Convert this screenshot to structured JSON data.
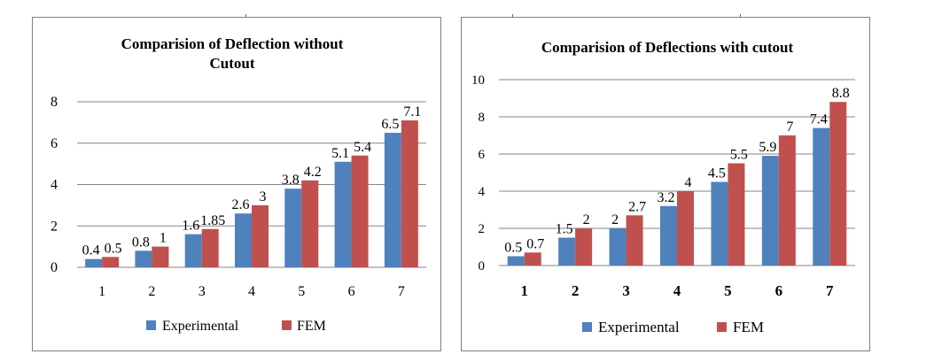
{
  "colors": {
    "experimental": "#4f81bd",
    "fem": "#c0504d",
    "gridline": "#868686",
    "border": "#7f7f7f"
  },
  "chart_data": [
    {
      "type": "bar",
      "title_lines": [
        "Comparision of Deflection without",
        "Cutout"
      ],
      "categories": [
        "1",
        "2",
        "3",
        "4",
        "5",
        "6",
        "7"
      ],
      "series": [
        {
          "name": "Experimental",
          "values": [
            0.4,
            0.8,
            1.6,
            2.6,
            3.8,
            5.1,
            6.5
          ],
          "labels": [
            "0.4",
            "0.8",
            "1.6",
            "2.6",
            "3.8",
            "5.1",
            "6.5"
          ],
          "color": "#4f81bd"
        },
        {
          "name": "FEM",
          "values": [
            0.5,
            1,
            1.85,
            3,
            4.2,
            5.4,
            7.1
          ],
          "labels": [
            "0.5",
            "1",
            "1.85",
            "3",
            "4.2",
            "5.4",
            "7.1"
          ],
          "color": "#c0504d"
        }
      ],
      "ylim": [
        0,
        8
      ],
      "yticks": [
        "0",
        "2",
        "4",
        "6",
        "8"
      ],
      "xlabel": "",
      "ylabel": "",
      "grid": true,
      "legend_position": "bottom"
    },
    {
      "type": "bar",
      "title_lines": [
        "Comparision of Deflections with cutout"
      ],
      "categories": [
        "1",
        "2",
        "3",
        "4",
        "5",
        "6",
        "7"
      ],
      "series": [
        {
          "name": "Experimental",
          "values": [
            0.5,
            1.5,
            2,
            3.2,
            4.5,
            5.9,
            7.4
          ],
          "labels": [
            "0.5",
            "1.5",
            "2",
            "3.2",
            "4.5",
            "5.9",
            "7.4"
          ],
          "color": "#4f81bd"
        },
        {
          "name": "FEM",
          "values": [
            0.7,
            2,
            2.7,
            4,
            5.5,
            7,
            8.8
          ],
          "labels": [
            "0.7",
            "2",
            "2.7",
            "4",
            "5.5",
            "7",
            "8.8"
          ],
          "color": "#c0504d"
        }
      ],
      "ylim": [
        0,
        10
      ],
      "yticks": [
        "0",
        "2",
        "4",
        "6",
        "8",
        "10"
      ],
      "xlabel": "",
      "ylabel": "",
      "grid": true,
      "legend_position": "bottom"
    }
  ]
}
